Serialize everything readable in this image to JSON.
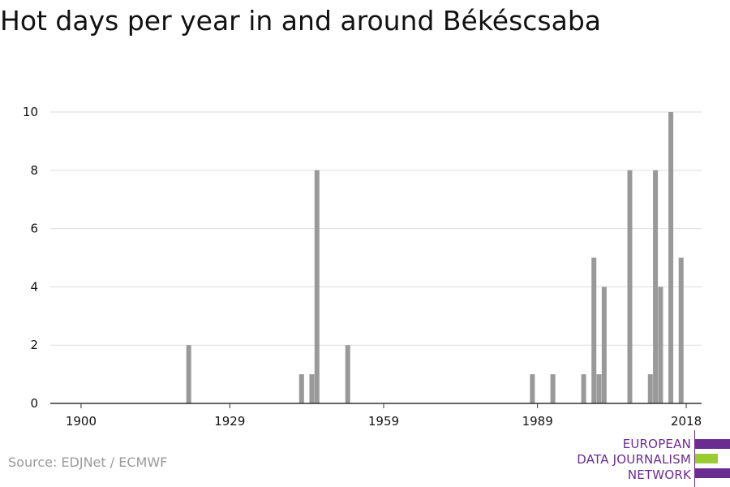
{
  "title": "Hot days per year in and around Békéscsaba",
  "source": "Source: EDJNet / ECMWF",
  "logo": {
    "lines": [
      "EUROPEAN",
      "DATA JOURNALISM",
      "NETWORK"
    ],
    "color_text": "#6a2c91",
    "color_bar_purple": "#6a2c91",
    "color_bar_green": "#9acd32"
  },
  "colors": {
    "bar": "#999999",
    "grid": "#dddddd",
    "axis": "#333333",
    "text": "#111111"
  },
  "chart_data": {
    "type": "bar",
    "title": "Hot days per year in and around Békéscsaba",
    "xlabel": "",
    "ylabel": "",
    "xlim": [
      1894,
      2021
    ],
    "ylim": [
      0,
      10
    ],
    "x_ticks": [
      1900,
      1929,
      1959,
      1989,
      2018
    ],
    "y_ticks": [
      0,
      2,
      4,
      6,
      8,
      10
    ],
    "grid": true,
    "series": [
      {
        "x": [
          1921,
          1943,
          1945,
          1946,
          1952,
          1988,
          1992,
          1998,
          2000,
          2001,
          2002,
          2007,
          2011,
          2012,
          2013,
          2015,
          2017
        ],
        "values": [
          2,
          1,
          1,
          8,
          2,
          1,
          1,
          1,
          5,
          1,
          4,
          8,
          1,
          8,
          4,
          10,
          5
        ]
      }
    ]
  }
}
